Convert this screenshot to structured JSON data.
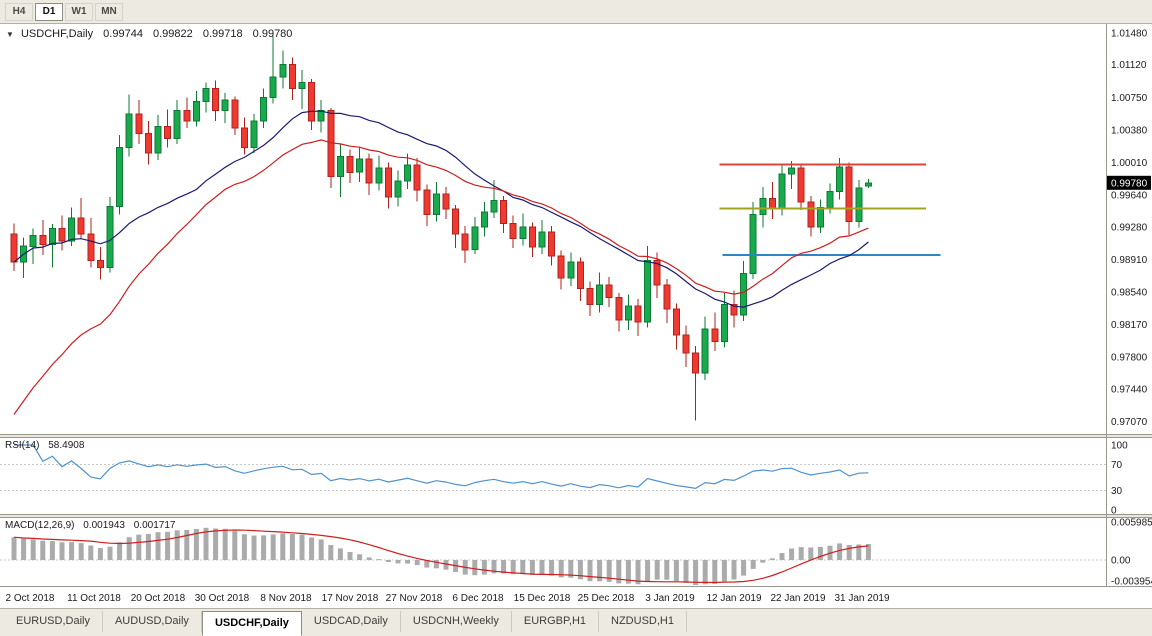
{
  "toolbar": {
    "timeframes": [
      {
        "label": "H4",
        "active": false
      },
      {
        "label": "D1",
        "active": true
      },
      {
        "label": "W1",
        "active": false
      },
      {
        "label": "MN",
        "active": false
      }
    ]
  },
  "chart": {
    "title": {
      "symbol": "USDCHF,Daily",
      "open": "0.99744",
      "high": "0.99822",
      "low": "0.99718",
      "close": "0.99780"
    },
    "current_price": "0.99780",
    "price_axis_labels": [
      "1.01480",
      "1.01120",
      "1.00750",
      "1.00380",
      "1.00010",
      "0.99640",
      "0.99280",
      "0.98910",
      "0.98540",
      "0.98170",
      "0.97800",
      "0.97440",
      "0.97070"
    ],
    "time_axis_labels": [
      "2 Oct 2018",
      "11 Oct 2018",
      "20 Oct 2018",
      "30 Oct 2018",
      "8 Nov 2018",
      "17 Nov 2018",
      "27 Nov 2018",
      "6 Dec 2018",
      "15 Dec 2018",
      "25 Dec 2018",
      "3 Jan 2019",
      "12 Jan 2019",
      "22 Jan 2019",
      "31 Jan 2019"
    ],
    "colors": {
      "background": "#ffffff",
      "chrome": "#edeae1",
      "up": "#18aa4c",
      "up_border": "#0c7a34",
      "down": "#ef3a31",
      "down_border": "#b1221b",
      "ma_fast": "#1b1b70",
      "ma_slow": "#cc1f1f",
      "rsi_line": "#4f93cc",
      "macd_hist": "#ababab",
      "macd_signal": "#cc1f1f",
      "axis_text": "#1a1a1a",
      "badge_bg": "#000000",
      "badge_text": "#ffffff"
    },
    "objects": {
      "hlines": [
        {
          "name": "resistance-red",
          "price": 0.99985,
          "color": "#e0433a",
          "from_bar": 73.5,
          "to_bar": 95
        },
        {
          "name": "mid-olive",
          "price": 0.9949,
          "color": "#a3a322",
          "from_bar": 73.5,
          "to_bar": 95
        },
        {
          "name": "support-blue",
          "price": 0.9896,
          "color": "#2e86c8",
          "from_bar": 73.8,
          "to_bar": 96.5
        }
      ]
    }
  },
  "rsi": {
    "label": "RSI(14)",
    "value": "58.4908",
    "period": 14,
    "color": "#4f93cc",
    "levels": [
      70,
      30
    ],
    "axis_labels": [
      "100",
      "70",
      "30",
      "0"
    ]
  },
  "macd": {
    "label": "MACD(12,26,9)",
    "value_macd": "0.001943",
    "value_signal": "0.001717",
    "axis_labels": [
      "0.005985",
      "0.00",
      "-0.003954"
    ]
  },
  "tabs": [
    {
      "label": "EURUSD,Daily",
      "active": false
    },
    {
      "label": "AUDUSD,Daily",
      "active": false
    },
    {
      "label": "USDCHF,Daily",
      "active": true
    },
    {
      "label": "USDCAD,Daily",
      "active": false
    },
    {
      "label": "USDCNH,Weekly",
      "active": false
    },
    {
      "label": "EURGBP,H1",
      "active": false
    },
    {
      "label": "NZDUSD,H1",
      "active": false
    }
  ],
  "chart_data": {
    "type": "candlestick",
    "symbol": "USDCHF",
    "timeframe": "Daily",
    "price_range": [
      0.9693,
      1.0158
    ],
    "ohlc": [
      [
        0.992,
        0.9932,
        0.9878,
        0.9888
      ],
      [
        0.9888,
        0.9916,
        0.987,
        0.9906
      ],
      [
        0.9906,
        0.9926,
        0.9886,
        0.9918
      ],
      [
        0.9918,
        0.9936,
        0.9896,
        0.9908
      ],
      [
        0.9908,
        0.9931,
        0.9882,
        0.9926
      ],
      [
        0.9926,
        0.9941,
        0.9901,
        0.9912
      ],
      [
        0.9912,
        0.995,
        0.9906,
        0.9938
      ],
      [
        0.9938,
        0.9961,
        0.9914,
        0.992
      ],
      [
        0.992,
        0.9938,
        0.9882,
        0.989
      ],
      [
        0.989,
        0.9905,
        0.9868,
        0.9882
      ],
      [
        0.9882,
        0.9962,
        0.9876,
        0.9951
      ],
      [
        0.9951,
        1.0032,
        0.9942,
        1.0018
      ],
      [
        1.0018,
        1.0078,
        1.0008,
        1.0056
      ],
      [
        1.0056,
        1.0072,
        1.0022,
        1.0034
      ],
      [
        1.0034,
        1.0048,
        0.9999,
        1.0012
      ],
      [
        1.0012,
        1.0055,
        1.0004,
        1.0042
      ],
      [
        1.0042,
        1.0061,
        1.0018,
        1.0028
      ],
      [
        1.0028,
        1.0072,
        1.0022,
        1.006
      ],
      [
        1.006,
        1.0075,
        1.004,
        1.0048
      ],
      [
        1.0048,
        1.0082,
        1.0042,
        1.007
      ],
      [
        1.007,
        1.0092,
        1.0058,
        1.0085
      ],
      [
        1.0085,
        1.0094,
        1.0048,
        1.006
      ],
      [
        1.006,
        1.008,
        1.0046,
        1.0072
      ],
      [
        1.0072,
        1.0076,
        1.0032,
        1.004
      ],
      [
        1.004,
        1.0052,
        1.001,
        1.0018
      ],
      [
        1.0018,
        1.0056,
        1.0012,
        1.0048
      ],
      [
        1.0048,
        1.0085,
        1.004,
        1.0075
      ],
      [
        1.0075,
        1.0145,
        1.0068,
        1.0098
      ],
      [
        1.0098,
        1.0128,
        1.0085,
        1.0112
      ],
      [
        1.0112,
        1.012,
        1.0072,
        1.0085
      ],
      [
        1.0085,
        1.0106,
        1.0062,
        1.0092
      ],
      [
        1.0092,
        1.0096,
        1.0038,
        1.0048
      ],
      [
        1.0048,
        1.0072,
        1.0035,
        1.006
      ],
      [
        1.006,
        1.0063,
        0.9972,
        0.9985
      ],
      [
        0.9985,
        1.0022,
        0.9962,
        1.0008
      ],
      [
        1.0008,
        1.0016,
        0.9978,
        0.999
      ],
      [
        0.999,
        1.0018,
        0.9979,
        1.0005
      ],
      [
        1.0005,
        1.0011,
        0.9964,
        0.9978
      ],
      [
        0.9978,
        1.0009,
        0.9969,
        0.9995
      ],
      [
        0.9995,
        1.0001,
        0.9949,
        0.9962
      ],
      [
        0.9962,
        0.9992,
        0.9951,
        0.998
      ],
      [
        0.998,
        1.0011,
        0.9971,
        0.9998
      ],
      [
        0.9998,
        1.0006,
        0.9957,
        0.997
      ],
      [
        0.997,
        0.9976,
        0.9929,
        0.9942
      ],
      [
        0.9942,
        0.9979,
        0.9934,
        0.9965
      ],
      [
        0.9965,
        0.9973,
        0.9937,
        0.9948
      ],
      [
        0.9948,
        0.9953,
        0.9904,
        0.992
      ],
      [
        0.992,
        0.9929,
        0.9887,
        0.9902
      ],
      [
        0.9902,
        0.9939,
        0.9897,
        0.9928
      ],
      [
        0.9928,
        0.9956,
        0.9917,
        0.9945
      ],
      [
        0.9945,
        0.9981,
        0.9938,
        0.9958
      ],
      [
        0.9958,
        0.9963,
        0.9921,
        0.9932
      ],
      [
        0.9932,
        0.9941,
        0.9904,
        0.9915
      ],
      [
        0.9915,
        0.9943,
        0.9907,
        0.9928
      ],
      [
        0.9928,
        0.9933,
        0.9894,
        0.9905
      ],
      [
        0.9905,
        0.9936,
        0.9897,
        0.9922
      ],
      [
        0.9922,
        0.9929,
        0.9884,
        0.9895
      ],
      [
        0.9895,
        0.9901,
        0.9857,
        0.987
      ],
      [
        0.987,
        0.9899,
        0.9861,
        0.9888
      ],
      [
        0.9888,
        0.9893,
        0.9844,
        0.9858
      ],
      [
        0.9858,
        0.9866,
        0.9827,
        0.984
      ],
      [
        0.984,
        0.9876,
        0.9831,
        0.9862
      ],
      [
        0.9862,
        0.9871,
        0.9837,
        0.9848
      ],
      [
        0.9848,
        0.9853,
        0.9809,
        0.9822
      ],
      [
        0.9822,
        0.9851,
        0.9811,
        0.9838
      ],
      [
        0.9838,
        0.9846,
        0.9804,
        0.982
      ],
      [
        0.982,
        0.9906,
        0.9814,
        0.989
      ],
      [
        0.989,
        0.9899,
        0.9847,
        0.9862
      ],
      [
        0.9862,
        0.9869,
        0.9819,
        0.9835
      ],
      [
        0.9835,
        0.9841,
        0.9789,
        0.9805
      ],
      [
        0.9805,
        0.9816,
        0.9769,
        0.9785
      ],
      [
        0.9785,
        0.9793,
        0.9708,
        0.9762
      ],
      [
        0.9762,
        0.9826,
        0.9754,
        0.9812
      ],
      [
        0.9812,
        0.9831,
        0.9787,
        0.9798
      ],
      [
        0.9798,
        0.9853,
        0.9791,
        0.984
      ],
      [
        0.984,
        0.9856,
        0.9814,
        0.9828
      ],
      [
        0.9828,
        0.9889,
        0.9821,
        0.9875
      ],
      [
        0.9875,
        0.9956,
        0.9869,
        0.9942
      ],
      [
        0.9942,
        0.9973,
        0.9927,
        0.996
      ],
      [
        0.996,
        0.9979,
        0.9937,
        0.9948
      ],
      [
        0.9948,
        1.0,
        0.9941,
        0.9988
      ],
      [
        0.9988,
        1.0003,
        0.9971,
        0.9995
      ],
      [
        0.9995,
        0.9999,
        0.9947,
        0.9956
      ],
      [
        0.9956,
        0.9963,
        0.9917,
        0.9928
      ],
      [
        0.9928,
        0.9959,
        0.9921,
        0.995
      ],
      [
        0.995,
        0.9977,
        0.9943,
        0.9968
      ],
      [
        0.9968,
        1.0006,
        0.9959,
        0.9996
      ],
      [
        0.9996,
        1.0001,
        0.9919,
        0.9934
      ],
      [
        0.9934,
        0.9981,
        0.9927,
        0.9972
      ],
      [
        0.99744,
        0.99822,
        0.99718,
        0.9978
      ]
    ],
    "overlays": [
      {
        "name": "ma-fast",
        "kind": "sma-20",
        "color": "#1b1b70"
      },
      {
        "name": "ma-slow",
        "kind": "ema-24",
        "color": "#cc1f1f"
      }
    ],
    "indicators": [
      {
        "name": "RSI",
        "period": 14,
        "last": 58.4908
      },
      {
        "name": "MACD",
        "params": [
          12,
          26,
          9
        ],
        "last_macd": 0.001943,
        "last_signal": 0.001717
      }
    ]
  }
}
